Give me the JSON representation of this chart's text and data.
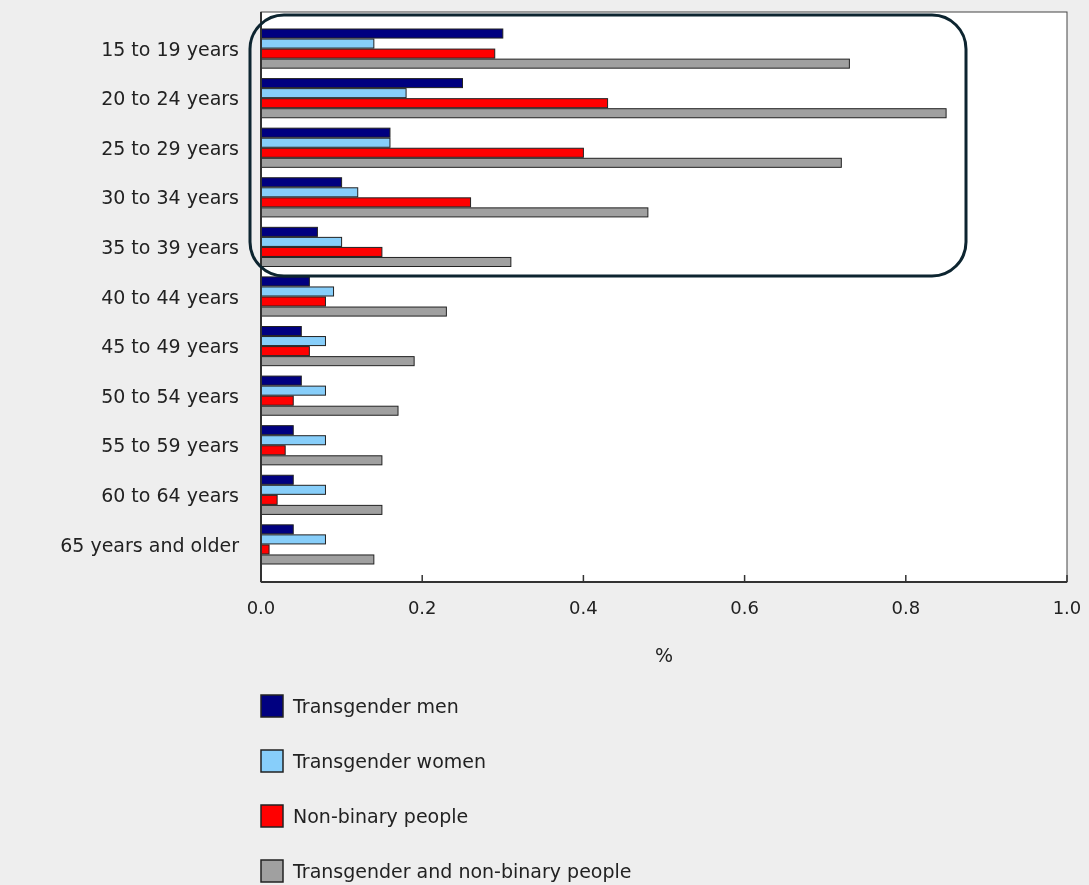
{
  "chart_data": {
    "type": "bar",
    "orientation": "horizontal",
    "xlabel": "%",
    "categories": [
      "15 to 19 years",
      "20 to 24 years",
      "25 to 29 years",
      "30 to 34 years",
      "35 to 39 years",
      "40 to 44 years",
      "45 to 49 years",
      "50 to 54 years",
      "55 to 59 years",
      "60 to 64 years",
      "65 years and older"
    ],
    "series": [
      {
        "name": "Transgender men",
        "color": "#000080",
        "values": [
          0.3,
          0.25,
          0.16,
          0.1,
          0.07,
          0.06,
          0.05,
          0.05,
          0.04,
          0.04,
          0.04
        ]
      },
      {
        "name": "Transgender women",
        "color": "#87cefa",
        "values": [
          0.14,
          0.18,
          0.16,
          0.12,
          0.1,
          0.09,
          0.08,
          0.08,
          0.08,
          0.08,
          0.08
        ]
      },
      {
        "name": "Non-binary people",
        "color": "#ff0000",
        "values": [
          0.29,
          0.43,
          0.4,
          0.26,
          0.15,
          0.08,
          0.06,
          0.04,
          0.03,
          0.02,
          0.01
        ]
      },
      {
        "name": "Transgender and non-binary people",
        "color": "#a0a0a0",
        "values": [
          0.73,
          0.85,
          0.72,
          0.48,
          0.31,
          0.23,
          0.19,
          0.17,
          0.15,
          0.15,
          0.14
        ]
      }
    ],
    "xlim": [
      0,
      1
    ],
    "xticks": [
      {
        "value": 0,
        "label": "0.0"
      },
      {
        "value": 0.2,
        "label": "0.2"
      },
      {
        "value": 0.4,
        "label": "0.4"
      },
      {
        "value": 0.6,
        "label": "0.6"
      },
      {
        "value": 0.8,
        "label": "0.8"
      },
      {
        "value": 1,
        "label": "1.0"
      }
    ],
    "grid": false,
    "legend": "bottom"
  }
}
